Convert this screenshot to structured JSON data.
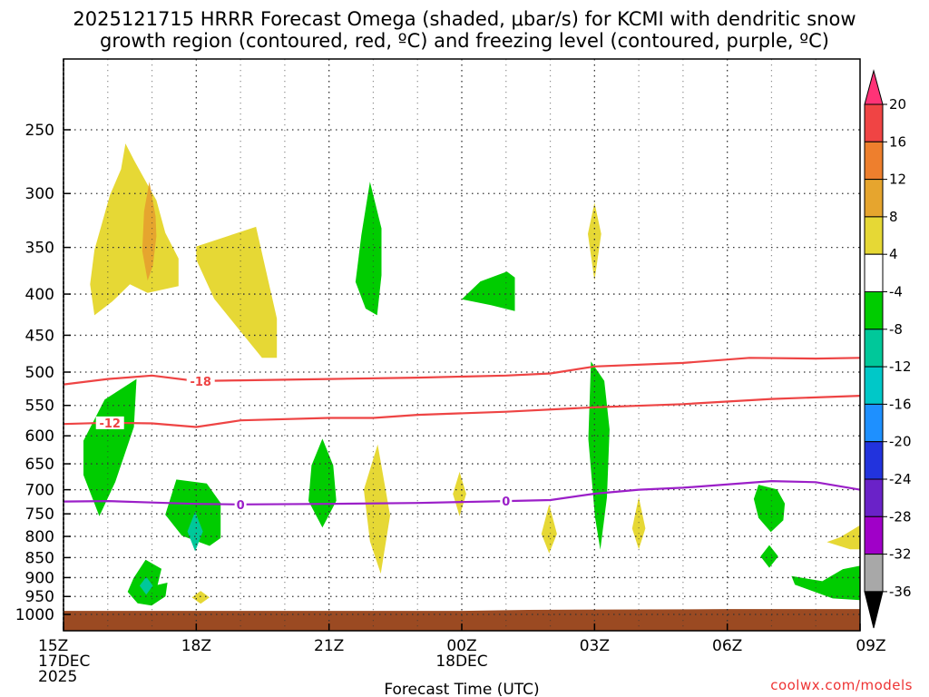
{
  "title_line1": "2025121715 HRRR Forecast Omega (shaded, μbar/s) for KCMI with dendritic snow",
  "title_line2": "growth region (contoured, red, ºC) and freezing level (contoured, purple, ºC)",
  "credit": "coolwx.com/models",
  "chart_data": {
    "type": "time-height cross section",
    "title": "2025121715 HRRR Forecast Omega (shaded, μbar/s) for KCMI with dendritic snow growth region (contoured, red, ºC) and freezing level (contoured, purple, ºC)",
    "xlabel": "Forecast Time (UTC)",
    "ylabel": "",
    "xlim_hours": [
      0,
      18
    ],
    "ylim_hpa": [
      1030,
      200
    ],
    "x_ticks": [
      {
        "h": 0,
        "lines": [
          "15Z",
          "17DEC",
          "2025"
        ]
      },
      {
        "h": 3,
        "lines": [
          "18Z"
        ]
      },
      {
        "h": 6,
        "lines": [
          "21Z"
        ]
      },
      {
        "h": 9,
        "lines": [
          "00Z",
          "18DEC"
        ]
      },
      {
        "h": 12,
        "lines": [
          "03Z"
        ]
      },
      {
        "h": 15,
        "lines": [
          "06Z"
        ]
      },
      {
        "h": 18,
        "lines": [
          "09Z"
        ]
      }
    ],
    "y_ticks": [
      250,
      300,
      350,
      400,
      450,
      500,
      550,
      600,
      650,
      700,
      750,
      800,
      850,
      900,
      950,
      1000
    ],
    "colorbar": {
      "levels": [
        20,
        16,
        12,
        8,
        4,
        -4,
        -8,
        -12,
        -16,
        -20,
        -24,
        -28,
        -32,
        -36
      ],
      "colors": [
        "#ff3377",
        "#f04444",
        "#ee7f2d",
        "#e6a52e",
        "#e6d835",
        "#ffffff",
        "#00cc00",
        "#00c89a",
        "#00c8c8",
        "#1e90ff",
        "#2233dd",
        "#6a22c8",
        "#a000c8",
        "#a8a8a8",
        "#000000"
      ],
      "note": "colors listed top (arrow >20) to bottom (arrow <-36)"
    },
    "omega_regions": [
      {
        "color": "#e6d835",
        "pts": [
          [
            0.7,
            1.0
          ],
          [
            1.1,
            0.92
          ],
          [
            1.5,
            0.82
          ],
          [
            1.9,
            0.87
          ],
          [
            2.6,
            0.83
          ],
          [
            2.6,
            0.67
          ],
          [
            2.3,
            0.52
          ],
          [
            2.1,
            0.33
          ],
          [
            1.9,
            0.24
          ],
          [
            1.6,
            0.1
          ],
          [
            1.4,
            0.0
          ],
          [
            1.3,
            0.15
          ],
          [
            1.05,
            0.3
          ],
          [
            0.7,
            0.62
          ],
          [
            0.6,
            0.82
          ]
        ],
        "top_hpa": 260,
        "bottom_hpa": 425
      },
      {
        "color": "#e6a52e",
        "pts": [
          [
            0.5,
            1.0
          ],
          [
            0.8,
            0.85
          ],
          [
            1.0,
            0.55
          ],
          [
            0.95,
            0.35
          ],
          [
            0.6,
            0.0
          ],
          [
            0.3,
            0.3
          ],
          [
            0.2,
            0.7
          ]
        ],
        "x_span": [
          1.7,
          2.1
        ],
        "top_hpa": 290,
        "bottom_hpa": 385
      },
      {
        "color": "#e6d835",
        "pts": [
          [
            0.0,
            0.15
          ],
          [
            1.0,
            0.0
          ],
          [
            1.35,
            0.7
          ],
          [
            1.35,
            1.0
          ],
          [
            1.1,
            1.0
          ],
          [
            0.3,
            0.55
          ],
          [
            0.0,
            0.25
          ]
        ],
        "x_span": [
          3.0,
          4.35
        ],
        "top_hpa": 330,
        "bottom_hpa": 480
      },
      {
        "color": "#00cc00",
        "pts": [
          [
            0.5,
            0.0
          ],
          [
            0.9,
            0.35
          ],
          [
            0.9,
            0.7
          ],
          [
            0.75,
            1.0
          ],
          [
            0.35,
            0.95
          ],
          [
            0.0,
            0.75
          ],
          [
            0.2,
            0.4
          ]
        ],
        "x_span": [
          6.6,
          7.25
        ],
        "top_hpa": 290,
        "bottom_hpa": 425
      },
      {
        "color": "#00cc00",
        "pts": [
          [
            0.0,
            0.7
          ],
          [
            0.35,
            0.25
          ],
          [
            0.85,
            0.0
          ],
          [
            1.0,
            0.15
          ],
          [
            1.0,
            1.0
          ],
          [
            0.55,
            0.85
          ]
        ],
        "x_span": [
          9.0,
          10.2
        ],
        "top_hpa": 375,
        "bottom_hpa": 420
      },
      {
        "color": "#e6d835",
        "pts": [
          [
            0.5,
            0.0
          ],
          [
            1.0,
            0.4
          ],
          [
            0.5,
            1.0
          ],
          [
            0.0,
            0.4
          ]
        ],
        "x_span": [
          11.85,
          12.15
        ],
        "top_hpa": 308,
        "bottom_hpa": 385
      },
      {
        "color": "#00cc00",
        "pts": [
          [
            0.0,
            0.45
          ],
          [
            0.4,
            0.15
          ],
          [
            1.0,
            0.0
          ],
          [
            0.95,
            0.35
          ],
          [
            0.6,
            0.75
          ],
          [
            0.3,
            1.0
          ],
          [
            0.0,
            0.7
          ]
        ],
        "x_span": [
          0.45,
          1.65
        ],
        "top_hpa": 510,
        "bottom_hpa": 755
      },
      {
        "color": "#00cc00",
        "pts": [
          [
            0.5,
            0.0
          ],
          [
            0.85,
            0.3
          ],
          [
            0.95,
            0.7
          ],
          [
            0.5,
            1.0
          ],
          [
            0.05,
            0.7
          ],
          [
            0.15,
            0.3
          ]
        ],
        "x_span": [
          5.5,
          6.2
        ],
        "top_hpa": 605,
        "bottom_hpa": 780
      },
      {
        "color": "#00cc00",
        "pts": [
          [
            0.2,
            0.0
          ],
          [
            0.7,
            0.1
          ],
          [
            0.9,
            0.35
          ],
          [
            0.8,
            0.7
          ],
          [
            0.55,
            0.97
          ],
          [
            0.35,
            0.8
          ],
          [
            0.1,
            0.4
          ]
        ],
        "x_span": [
          11.8,
          12.4
        ],
        "top_hpa": 485,
        "bottom_hpa": 845
      },
      {
        "color": "#00cc00",
        "pts": [
          [
            0.2,
            0.0
          ],
          [
            0.75,
            0.05
          ],
          [
            1.0,
            0.3
          ],
          [
            1.0,
            0.75
          ],
          [
            0.8,
            0.85
          ],
          [
            0.3,
            0.72
          ],
          [
            0.0,
            0.45
          ]
        ],
        "x_span": [
          2.3,
          3.55
        ],
        "top_hpa": 680,
        "bottom_hpa": 850
      },
      {
        "color": "#00cc00",
        "pts": [
          [
            0.45,
            0.0
          ],
          [
            0.85,
            0.2
          ],
          [
            0.75,
            0.55
          ],
          [
            1.0,
            0.5
          ],
          [
            0.95,
            0.8
          ],
          [
            0.6,
            1.0
          ],
          [
            0.25,
            0.95
          ],
          [
            0.0,
            0.7
          ],
          [
            0.15,
            0.4
          ]
        ],
        "x_span": [
          1.45,
          2.35
        ],
        "top_hpa": 855,
        "bottom_hpa": 975
      },
      {
        "color": "#00c89a",
        "pts": [
          [
            0.5,
            0.0
          ],
          [
            1.0,
            0.5
          ],
          [
            0.5,
            1.0
          ],
          [
            0.0,
            0.5
          ]
        ],
        "x_span": [
          2.8,
          3.15
        ],
        "top_hpa": 745,
        "bottom_hpa": 835
      },
      {
        "color": "#00c89a",
        "pts": [
          [
            0.5,
            0.0
          ],
          [
            1.0,
            0.5
          ],
          [
            0.5,
            1.0
          ],
          [
            0.0,
            0.5
          ]
        ],
        "x_span": [
          1.72,
          2.02
        ],
        "top_hpa": 898,
        "bottom_hpa": 945
      },
      {
        "color": "#e6d835",
        "pts": [
          [
            0.5,
            0.0
          ],
          [
            0.9,
            0.55
          ],
          [
            0.6,
            1.0
          ],
          [
            0.25,
            0.75
          ],
          [
            0.05,
            0.35
          ]
        ],
        "x_span": [
          6.75,
          7.45
        ],
        "top_hpa": 615,
        "bottom_hpa": 890
      },
      {
        "color": "#e6d835",
        "pts": [
          [
            0.5,
            0.0
          ],
          [
            1.0,
            0.5
          ],
          [
            0.5,
            1.0
          ],
          [
            0.0,
            0.5
          ]
        ],
        "x_span": [
          8.8,
          9.1
        ],
        "top_hpa": 665,
        "bottom_hpa": 755
      },
      {
        "color": "#e6d835",
        "pts": [
          [
            0.5,
            0.0
          ],
          [
            1.0,
            0.6
          ],
          [
            0.5,
            1.0
          ],
          [
            0.0,
            0.6
          ]
        ],
        "x_span": [
          10.8,
          11.15
        ],
        "top_hpa": 730,
        "bottom_hpa": 840
      },
      {
        "color": "#e6d835",
        "pts": [
          [
            0.5,
            0.0
          ],
          [
            1.0,
            0.6
          ],
          [
            0.5,
            1.0
          ],
          [
            0.0,
            0.6
          ]
        ],
        "x_span": [
          12.85,
          13.15
        ],
        "top_hpa": 715,
        "bottom_hpa": 830
      },
      {
        "color": "#e6d835",
        "pts": [
          [
            0.5,
            0.0
          ],
          [
            1.0,
            0.5
          ],
          [
            0.5,
            1.0
          ],
          [
            0.0,
            0.5
          ]
        ],
        "x_span": [
          2.9,
          3.3
        ],
        "top_hpa": 935,
        "bottom_hpa": 970
      },
      {
        "color": "#00cc00",
        "pts": [
          [
            0.15,
            0.0
          ],
          [
            0.75,
            0.1
          ],
          [
            1.0,
            0.4
          ],
          [
            0.95,
            0.75
          ],
          [
            0.55,
            1.0
          ],
          [
            0.15,
            0.7
          ],
          [
            0.0,
            0.3
          ]
        ],
        "x_span": [
          15.6,
          16.3
        ],
        "top_hpa": 690,
        "bottom_hpa": 790
      },
      {
        "color": "#00cc00",
        "pts": [
          [
            0.5,
            0.0
          ],
          [
            1.0,
            0.5
          ],
          [
            0.5,
            1.0
          ],
          [
            0.0,
            0.5
          ]
        ],
        "x_span": [
          15.75,
          16.15
        ],
        "top_hpa": 820,
        "bottom_hpa": 875
      },
      {
        "color": "#e6d835",
        "pts": [
          [
            0.4,
            0.5
          ],
          [
            1.0,
            0.0
          ],
          [
            1.0,
            1.0
          ],
          [
            0.7,
            1.0
          ],
          [
            0.0,
            0.7
          ]
        ],
        "x_span": [
          17.25,
          18.0
        ],
        "top_hpa": 775,
        "bottom_hpa": 830
      },
      {
        "color": "#00cc00",
        "pts": [
          [
            0.0,
            0.3
          ],
          [
            0.45,
            0.45
          ],
          [
            0.75,
            0.1
          ],
          [
            1.0,
            0.0
          ],
          [
            1.0,
            1.0
          ],
          [
            0.6,
            0.95
          ],
          [
            0.05,
            0.55
          ]
        ],
        "x_span": [
          16.45,
          18.0
        ],
        "top_hpa": 870,
        "bottom_hpa": 960
      }
    ],
    "contours": [
      {
        "name": "-18 C isotherm",
        "color": "#ee4444",
        "label": "-18",
        "label_h": 3.1,
        "pts": [
          [
            0,
            518
          ],
          [
            1,
            510
          ],
          [
            2,
            505
          ],
          [
            3,
            513
          ],
          [
            4,
            512
          ],
          [
            6,
            510
          ],
          [
            8,
            508
          ],
          [
            10,
            505
          ],
          [
            11,
            502
          ],
          [
            12,
            492
          ],
          [
            14,
            487
          ],
          [
            15.5,
            480
          ],
          [
            17,
            481
          ],
          [
            18,
            480
          ]
        ]
      },
      {
        "name": "-12 C isotherm",
        "color": "#ee4444",
        "label": "-12",
        "label_h": 1.05,
        "pts": [
          [
            0,
            580
          ],
          [
            1,
            578
          ],
          [
            2,
            579
          ],
          [
            3,
            585
          ],
          [
            4,
            574
          ],
          [
            6,
            570
          ],
          [
            7,
            570
          ],
          [
            8,
            565
          ],
          [
            10,
            560
          ],
          [
            12,
            553
          ],
          [
            14,
            548
          ],
          [
            16,
            540
          ],
          [
            18,
            535
          ]
        ]
      },
      {
        "name": "0 C freezing level",
        "color": "#9b1fc8",
        "label": "0",
        "label_h": 4.0,
        "label2_h": 10.0,
        "pts": [
          [
            0,
            724
          ],
          [
            1,
            723
          ],
          [
            2,
            726
          ],
          [
            3,
            729
          ],
          [
            4,
            730
          ],
          [
            6,
            729
          ],
          [
            8,
            727
          ],
          [
            10,
            723
          ],
          [
            11,
            721
          ],
          [
            12,
            708
          ],
          [
            13,
            700
          ],
          [
            14,
            696
          ],
          [
            16,
            683
          ],
          [
            17,
            685
          ],
          [
            18,
            700
          ]
        ]
      }
    ],
    "terrain": {
      "color": "#9b4a22",
      "top_hpa_left": 990,
      "top_hpa_right": 985
    }
  }
}
